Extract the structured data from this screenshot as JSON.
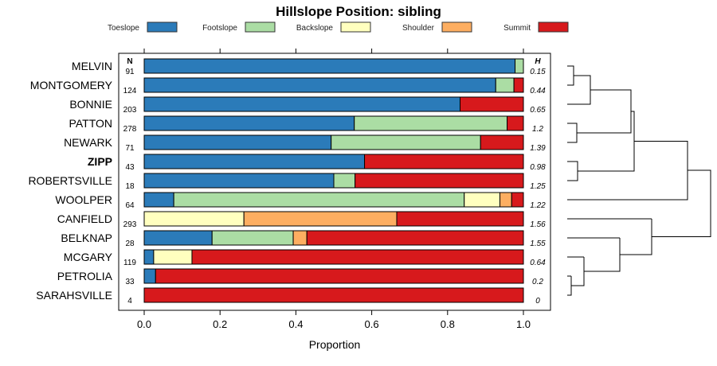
{
  "chart_data": {
    "type": "bar",
    "orientation": "horizontal-stacked",
    "title": "Hillslope Position: sibling",
    "xlabel": "Proportion",
    "xlim": [
      0,
      1
    ],
    "xticks": [
      "0.0",
      "0.2",
      "0.4",
      "0.6",
      "0.8",
      "1.0"
    ],
    "legend_position": "top",
    "n_header": "N",
    "h_header": "H",
    "series": [
      {
        "name": "Toeslope",
        "color": "#2b7bb9"
      },
      {
        "name": "Footslope",
        "color": "#abdda4"
      },
      {
        "name": "Backslope",
        "color": "#ffffbf"
      },
      {
        "name": "Shoulder",
        "color": "#fdae61"
      },
      {
        "name": "Summit",
        "color": "#d7191c"
      }
    ],
    "rows": [
      {
        "name": "MELVIN",
        "n": "91",
        "h": "0.15",
        "values": [
          0.978,
          0.022,
          0,
          0,
          0
        ]
      },
      {
        "name": "MONTGOMERY",
        "n": "124",
        "h": "0.44",
        "values": [
          0.927,
          0.048,
          0,
          0,
          0.025
        ]
      },
      {
        "name": "BONNIE",
        "n": "203",
        "h": "0.65",
        "values": [
          0.833,
          0,
          0,
          0,
          0.167
        ]
      },
      {
        "name": "PATTON",
        "n": "278",
        "h": "1.2",
        "values": [
          0.554,
          0.403,
          0,
          0,
          0.043
        ]
      },
      {
        "name": "NEWARK",
        "n": "71",
        "h": "1.39",
        "values": [
          0.493,
          0.394,
          0,
          0,
          0.113
        ]
      },
      {
        "name": "ZIPP",
        "n": "43",
        "h": "0.98",
        "values": [
          0.581,
          0,
          0,
          0,
          0.419
        ],
        "bold": true
      },
      {
        "name": "ROBERTSVILLE",
        "n": "18",
        "h": "1.25",
        "values": [
          0.5,
          0.056,
          0,
          0,
          0.444
        ]
      },
      {
        "name": "WOOLPER",
        "n": "64",
        "h": "1.22",
        "values": [
          0.078,
          0.766,
          0.094,
          0.031,
          0.031
        ]
      },
      {
        "name": "CANFIELD",
        "n": "293",
        "h": "1.56",
        "values": [
          0,
          0,
          0.263,
          0.403,
          0.334
        ]
      },
      {
        "name": "BELKNAP",
        "n": "28",
        "h": "1.55",
        "values": [
          0.179,
          0.214,
          0,
          0.036,
          0.571
        ]
      },
      {
        "name": "MCGARY",
        "n": "119",
        "h": "0.64",
        "values": [
          0.025,
          0,
          0.101,
          0,
          0.874
        ]
      },
      {
        "name": "PETROLIA",
        "n": "33",
        "h": "0.2",
        "values": [
          0.03,
          0,
          0,
          0,
          0.97
        ]
      },
      {
        "name": "SARAHSVILLE",
        "n": "4",
        "h": "0",
        "values": [
          0,
          0,
          0,
          0,
          1
        ]
      }
    ]
  }
}
